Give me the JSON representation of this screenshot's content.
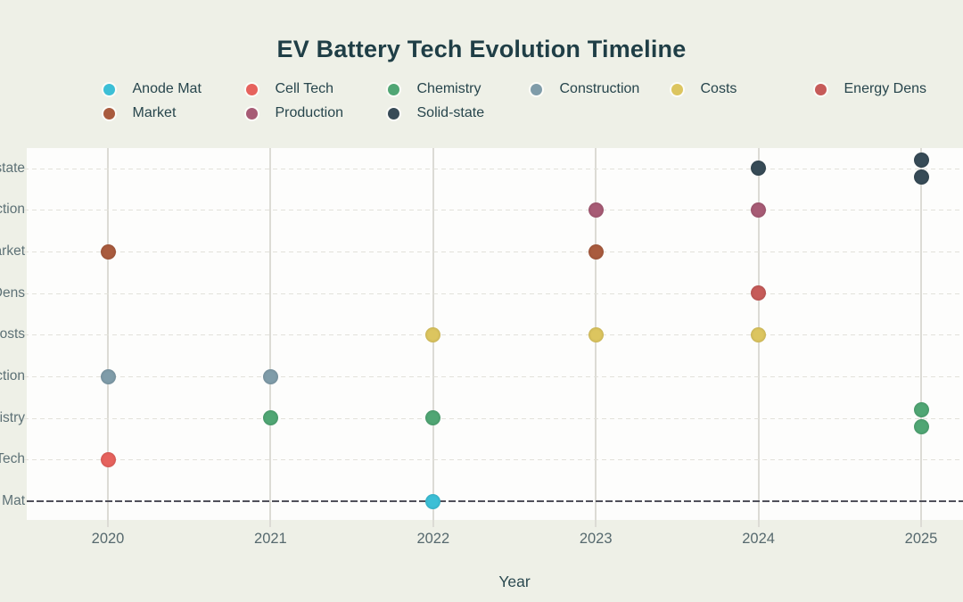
{
  "title": "EV Battery Tech Evolution Timeline",
  "chart_data": {
    "type": "scatter",
    "title": "EV Battery Tech Evolution Timeline",
    "xlabel": "Year",
    "x_ticks": [
      "2020",
      "2021",
      "2022",
      "2023",
      "2024",
      "2025"
    ],
    "x_range": [
      2020,
      2025
    ],
    "y_categories_top_to_bottom": [
      "Solid-state",
      "Production",
      "Market",
      "Energy Dens",
      "Costs",
      "Construction",
      "Chemistry",
      "Cell Tech",
      "Anode Mat"
    ],
    "grid": {
      "horizontal": "dashed light",
      "vertical": "solid light",
      "baseline_row": "Anode Mat"
    },
    "legend_position": "top, two rows",
    "legend": [
      {
        "label": "Anode Mat",
        "color": "#3CBFD6"
      },
      {
        "label": "Cell Tech",
        "color": "#E6625D"
      },
      {
        "label": "Chemistry",
        "color": "#50A674"
      },
      {
        "label": "Construction",
        "color": "#7F9CA9"
      },
      {
        "label": "Costs",
        "color": "#DCC55F"
      },
      {
        "label": "Energy Dens",
        "color": "#C65B59"
      },
      {
        "label": "Market",
        "color": "#A95B3E"
      },
      {
        "label": "Production",
        "color": "#A75B75"
      },
      {
        "label": "Solid-state",
        "color": "#374B57"
      }
    ],
    "points": [
      {
        "year": 2020,
        "category": "Market"
      },
      {
        "year": 2020,
        "category": "Construction"
      },
      {
        "year": 2020,
        "category": "Cell Tech"
      },
      {
        "year": 2021,
        "category": "Construction"
      },
      {
        "year": 2021,
        "category": "Chemistry"
      },
      {
        "year": 2022,
        "category": "Costs"
      },
      {
        "year": 2022,
        "category": "Chemistry"
      },
      {
        "year": 2022,
        "category": "Anode Mat"
      },
      {
        "year": 2023,
        "category": "Production"
      },
      {
        "year": 2023,
        "category": "Market"
      },
      {
        "year": 2023,
        "category": "Costs"
      },
      {
        "year": 2024,
        "category": "Solid-state"
      },
      {
        "year": 2024,
        "category": "Production"
      },
      {
        "year": 2024,
        "category": "Energy Dens"
      },
      {
        "year": 2024,
        "category": "Costs"
      },
      {
        "year": 2025,
        "category": "Solid-state",
        "jitter": -9.5
      },
      {
        "year": 2025,
        "category": "Solid-state",
        "jitter": 9.5
      },
      {
        "year": 2025,
        "category": "Chemistry",
        "jitter": -9.5
      },
      {
        "year": 2025,
        "category": "Chemistry",
        "jitter": 9.5
      }
    ],
    "colors": {
      "background": "#EEF0E7",
      "plot_background": "#FDFDFC",
      "title_text": "#1F3E46",
      "tick_text": "#5D7176",
      "vertical_grid": "#DCDBD5",
      "horizontal_grid": "#E2E1DA",
      "baseline": "#50505A"
    }
  }
}
